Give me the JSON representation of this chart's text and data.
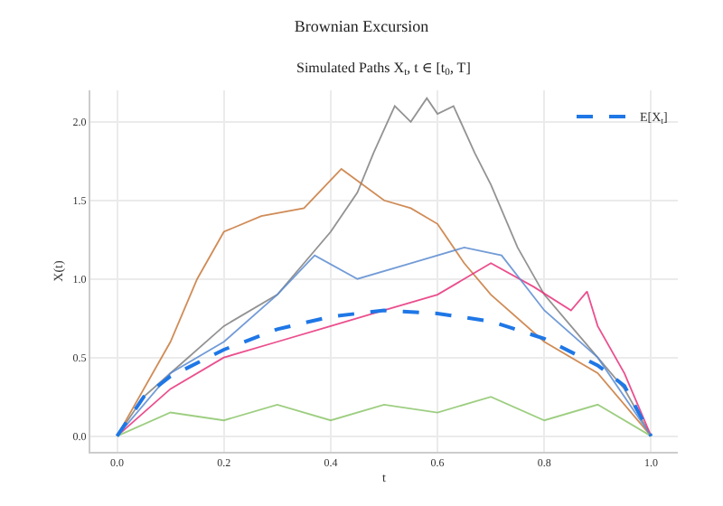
{
  "chart_data": {
    "type": "line",
    "title": "Brownian Excursion",
    "subtitle": "Simulated Paths X$_{t}$, t ∈ [t$_{0}$, T]",
    "xlabel": "t",
    "ylabel": "X(t)",
    "xlim": [
      -0.05,
      1.05
    ],
    "xticks": [
      {
        "value": 0,
        "label": "0.0"
      },
      {
        "value": 0.2,
        "label": "0.2"
      },
      {
        "value": 0.4,
        "label": "0.4"
      },
      {
        "value": 0.6,
        "label": "0.6"
      },
      {
        "value": 0.8,
        "label": "0.8"
      },
      {
        "value": 1,
        "label": "1.0"
      }
    ],
    "ylim": [
      -0.1,
      2.2
    ],
    "yticks": [
      {
        "value": 0,
        "label": "0.0"
      },
      0.5,
      {
        "value": 1,
        "label": "1.0"
      },
      1.5,
      {
        "value": 2,
        "label": "2.0"
      }
    ],
    "grid": true,
    "legend": "top right",
    "marker": "none",
    "series": [
      {
        "color": "#808080",
        "x": [
          0,
          0.05,
          0.1,
          0.2,
          0.3,
          0.4,
          0.45,
          0.48,
          0.5,
          0.52,
          0.55,
          0.58,
          0.6,
          0.63,
          0.67,
          0.7,
          0.75,
          0.8,
          0.85,
          0.9,
          0.95,
          1
        ],
        "values": [
          0,
          0.25,
          0.4,
          0.7,
          0.9,
          1.3,
          1.55,
          1.8,
          1.95,
          2.1,
          2.0,
          2.15,
          2.05,
          2.1,
          1.8,
          1.6,
          1.2,
          0.9,
          0.7,
          0.5,
          0.3,
          0
        ]
      },
      {
        "color": "#c8783a",
        "x": [
          0,
          0.1,
          0.15,
          0.2,
          0.27,
          0.35,
          0.42,
          0.5,
          0.55,
          0.6,
          0.65,
          0.7,
          0.8,
          0.9,
          1
        ],
        "values": [
          0,
          0.6,
          1.0,
          1.3,
          1.4,
          1.45,
          1.7,
          1.5,
          1.45,
          1.35,
          1.1,
          0.9,
          0.6,
          0.4,
          0
        ]
      },
      {
        "color": "#e8307a",
        "x": [
          0,
          0.1,
          0.2,
          0.3,
          0.4,
          0.5,
          0.6,
          0.7,
          0.78,
          0.85,
          0.88,
          0.9,
          0.95,
          1
        ],
        "values": [
          0,
          0.3,
          0.5,
          0.6,
          0.7,
          0.8,
          0.9,
          1.1,
          0.95,
          0.8,
          0.92,
          0.7,
          0.4,
          0
        ]
      },
      {
        "color": "#5b8bd0",
        "x": [
          0,
          0.1,
          0.2,
          0.3,
          0.37,
          0.45,
          0.55,
          0.65,
          0.72,
          0.8,
          0.9,
          1
        ],
        "values": [
          0,
          0.4,
          0.6,
          0.9,
          1.15,
          1.0,
          1.1,
          1.2,
          1.15,
          0.8,
          0.5,
          0
        ]
      },
      {
        "color": "#8cc56b",
        "x": [
          0,
          0.1,
          0.2,
          0.3,
          0.4,
          0.5,
          0.6,
          0.7,
          0.8,
          0.9,
          1
        ],
        "values": [
          0,
          0.15,
          0.1,
          0.2,
          0.1,
          0.2,
          0.15,
          0.25,
          0.1,
          0.2,
          0
        ]
      },
      {
        "name": "E[X$_{t}$]",
        "color": "#1f77e6",
        "line_style": "dashed",
        "x": [
          0,
          0.02,
          0.05,
          0.1,
          0.2,
          0.3,
          0.4,
          0.5,
          0.6,
          0.7,
          0.8,
          0.9,
          0.95,
          1
        ],
        "values": [
          0,
          0.1,
          0.25,
          0.38,
          0.55,
          0.68,
          0.76,
          0.8,
          0.78,
          0.73,
          0.62,
          0.45,
          0.32,
          0
        ]
      }
    ]
  }
}
